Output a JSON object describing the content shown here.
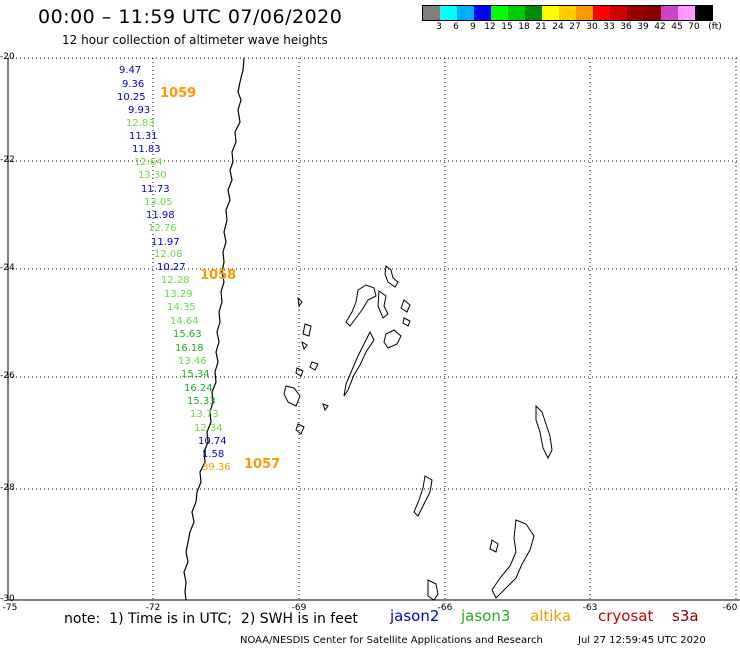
{
  "header": {
    "title": "00:00 – 11:59 UTC 07/06/2020",
    "subtitle": "12 hour collection of altimeter wave heights"
  },
  "colorbar": {
    "colors": [
      "#808080",
      "#00ffff",
      "#00b0ff",
      "#0000ff",
      "#00ff00",
      "#00cc00",
      "#008800",
      "#ffff00",
      "#ffcc00",
      "#ff9900",
      "#ff0000",
      "#cc0000",
      "#990000",
      "#880000",
      "#cc44cc",
      "#ff99ff",
      "#000000"
    ],
    "ticks": [
      "3",
      "6",
      "9",
      "12",
      "15",
      "18",
      "21",
      "24",
      "27",
      "30",
      "33",
      "36",
      "39",
      "42",
      "45",
      "70",
      "(ft)"
    ]
  },
  "axes": {
    "lat_labels": [
      "-20",
      "-22",
      "-24",
      "-26",
      "-28",
      "-30"
    ],
    "lon_labels": [
      "-75",
      "-72",
      "-69",
      "-66",
      "-63",
      "-60"
    ]
  },
  "wave_heights": [
    {
      "value": "9.47",
      "color": "#0000cc"
    },
    {
      "value": "9.36",
      "color": "#0000cc"
    },
    {
      "value": "10.25",
      "color": "#0000cc"
    },
    {
      "value": "9.93",
      "color": "#0000cc"
    },
    {
      "value": "12.83",
      "color": "#66dd44"
    },
    {
      "value": "11.31",
      "color": "#0000cc"
    },
    {
      "value": "11.83",
      "color": "#0000cc"
    },
    {
      "value": "12.64",
      "color": "#66dd44"
    },
    {
      "value": "13.30",
      "color": "#66dd44"
    },
    {
      "value": "11.73",
      "color": "#0000cc"
    },
    {
      "value": "13.05",
      "color": "#66dd44"
    },
    {
      "value": "11.98",
      "color": "#0000cc"
    },
    {
      "value": "12.76",
      "color": "#66dd44"
    },
    {
      "value": "11.97",
      "color": "#0000cc"
    },
    {
      "value": "12.08",
      "color": "#66dd44"
    },
    {
      "value": "10.27",
      "color": "#0000cc"
    },
    {
      "value": "12.28",
      "color": "#66dd44"
    },
    {
      "value": "13.29",
      "color": "#66dd44"
    },
    {
      "value": "14.35",
      "color": "#66dd44"
    },
    {
      "value": "14.64",
      "color": "#66dd44"
    },
    {
      "value": "15.63",
      "color": "#22aa22"
    },
    {
      "value": "16.18",
      "color": "#22aa22"
    },
    {
      "value": "13.46",
      "color": "#66dd44"
    },
    {
      "value": "15.34",
      "color": "#22aa22"
    },
    {
      "value": "16.24",
      "color": "#22aa22"
    },
    {
      "value": "15.33",
      "color": "#22aa22"
    },
    {
      "value": "13.73",
      "color": "#66dd44"
    },
    {
      "value": "12.34",
      "color": "#66dd44"
    },
    {
      "value": "10.74",
      "color": "#0000cc"
    },
    {
      "value": "1.58",
      "color": "#0000cc"
    },
    {
      "value": "39.36",
      "color": "#ff9900"
    }
  ],
  "pass_ids": [
    "1059",
    "1058",
    "1057"
  ],
  "pass_color": "#ff9900",
  "footer": {
    "note": "note:  1) Time is in UTC;  2) SWH is in feet",
    "satellites": [
      {
        "name": "jason2",
        "color": "#0000cc"
      },
      {
        "name": "jason3",
        "color": "#22aa22"
      },
      {
        "name": "altika",
        "color": "#ff9900"
      },
      {
        "name": "cryosat",
        "color": "#cc0000"
      },
      {
        "name": "s3a",
        "color": "#880000"
      }
    ],
    "credit": "NOAA/NESDIS Center for Satellite Applications and Research",
    "date": "Jul 27 12:59:45 UTC 2020"
  }
}
